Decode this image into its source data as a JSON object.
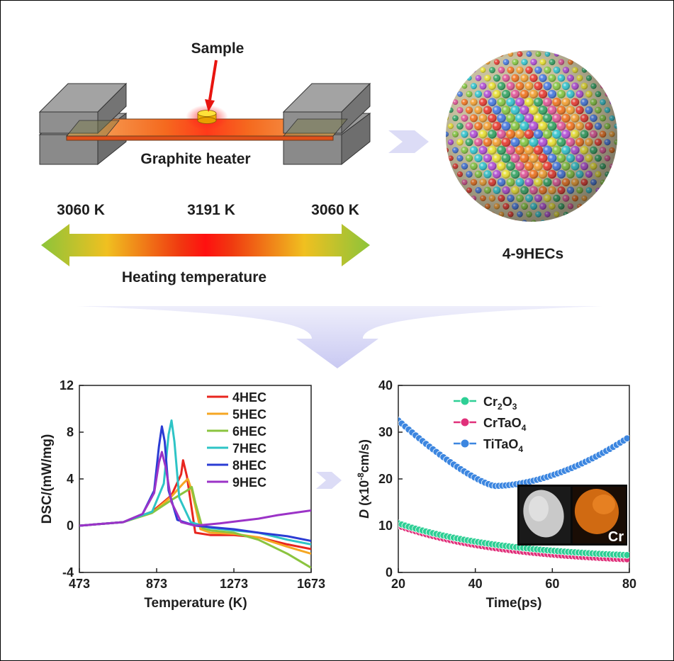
{
  "top": {
    "sample_label": "Sample",
    "heater_label": "Graphite heater",
    "temp_left": "3060 K",
    "temp_center": "3191 K",
    "temp_right": "3060 K",
    "gradient_label": "Heating temperature",
    "sphere_label": "4-9HECs",
    "sphere_colors": [
      "#f2a33a",
      "#e8433a",
      "#4f7fe0",
      "#8ac84a",
      "#3cc6cf",
      "#b455d6",
      "#e8e03a",
      "#3ea86a",
      "#e05d9b",
      "#f07a2a"
    ]
  },
  "chart_data": [
    {
      "type": "line",
      "xlabel": "Temperature (K)",
      "ylabel": "DSC/(mW/mg)",
      "xlim": [
        473,
        1673
      ],
      "ylim": [
        -4,
        12
      ],
      "xticks": [
        "473",
        "873",
        "1273",
        "1673"
      ],
      "yticks": [
        "-4",
        "0",
        "4",
        "8",
        "12"
      ],
      "legend_position": "top-right",
      "series": [
        {
          "name": "4HEC",
          "color": "#e8261f",
          "x": [
            473,
            700,
            850,
            950,
            1000,
            1010,
            1030,
            1073,
            1150,
            1273,
            1400,
            1550,
            1673
          ],
          "y": [
            0,
            0.3,
            1.2,
            2.6,
            4.4,
            5.6,
            4.2,
            -0.6,
            -0.8,
            -0.8,
            -1.0,
            -1.6,
            -2.0
          ]
        },
        {
          "name": "5HEC",
          "color": "#f5a623",
          "x": [
            473,
            700,
            850,
            950,
            1010,
            1035,
            1055,
            1100,
            1150,
            1273,
            1400,
            1550,
            1673
          ],
          "y": [
            0,
            0.3,
            1.1,
            2.5,
            3.6,
            4.0,
            3.0,
            -0.3,
            -0.6,
            -0.7,
            -1.0,
            -1.8,
            -2.4
          ]
        },
        {
          "name": "6HEC",
          "color": "#8bc43f",
          "x": [
            473,
            700,
            850,
            950,
            1030,
            1055,
            1073,
            1110,
            1150,
            1273,
            1400,
            1550,
            1673
          ],
          "y": [
            0,
            0.3,
            1.1,
            2.2,
            3.0,
            3.3,
            2.0,
            -0.2,
            -0.4,
            -0.6,
            -1.2,
            -2.4,
            -3.6
          ]
        },
        {
          "name": "7HEC",
          "color": "#2ec4c6",
          "x": [
            473,
            700,
            850,
            910,
            935,
            950,
            965,
            990,
            1050,
            1150,
            1273,
            1400,
            1550,
            1673
          ],
          "y": [
            0,
            0.3,
            1.2,
            3.6,
            7.8,
            9.0,
            7.2,
            2.4,
            0.3,
            -0.2,
            -0.4,
            -0.6,
            -1.2,
            -1.6
          ]
        },
        {
          "name": "8HEC",
          "color": "#2b3cd4",
          "x": [
            473,
            700,
            800,
            860,
            885,
            900,
            915,
            935,
            980,
            1073,
            1200,
            1273,
            1400,
            1550,
            1673
          ],
          "y": [
            0,
            0.3,
            1.0,
            3.0,
            6.8,
            8.5,
            7.2,
            3.0,
            0.5,
            0.0,
            -0.2,
            -0.3,
            -0.6,
            -0.9,
            -1.3
          ]
        },
        {
          "name": "9HEC",
          "color": "#9b33c7",
          "x": [
            473,
            700,
            800,
            860,
            885,
            900,
            920,
            950,
            1000,
            1073,
            1200,
            1300,
            1400,
            1500,
            1673
          ],
          "y": [
            0,
            0.3,
            1.0,
            2.8,
            5.4,
            6.3,
            5.0,
            2.0,
            0.3,
            0.0,
            0.2,
            0.4,
            0.6,
            0.9,
            1.3
          ]
        }
      ]
    },
    {
      "type": "scatter",
      "xlabel": "Time(ps)",
      "ylabel_prefix": "D",
      "ylabel_rest": " (x10",
      "ylabel_exp": "-8",
      "ylabel_unit": "cm/s)",
      "xlim": [
        20,
        80
      ],
      "ylim": [
        0,
        40
      ],
      "xticks": [
        "20",
        "40",
        "60",
        "80"
      ],
      "yticks": [
        "0",
        "10",
        "20",
        "30",
        "40"
      ],
      "legend_position": "top-left",
      "inset_label": "Cr",
      "series": [
        {
          "name_parts": [
            "Cr",
            "2",
            "O",
            "3"
          ],
          "color": "#2ecf95",
          "shape": "decay",
          "y_start": 10.5,
          "y_end": 3.7
        },
        {
          "name_parts": [
            "CrTaO",
            "4"
          ],
          "color": "#e0307a",
          "shape": "decay",
          "y_start": 10.0,
          "y_end": 2.8
        },
        {
          "name_parts": [
            "TiTaO",
            "4"
          ],
          "color": "#3c86e0",
          "shape": "vcurve",
          "y_start": 32.5,
          "y_min": 18.5,
          "x_min": 45,
          "y_end": 29.0
        }
      ]
    }
  ]
}
